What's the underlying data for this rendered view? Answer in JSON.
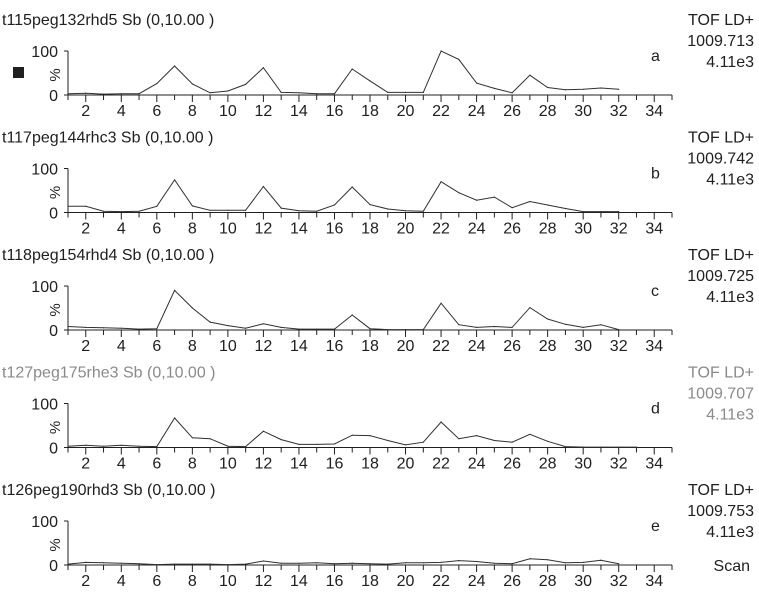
{
  "x_label": "Scan",
  "chart_data": [
    {
      "type": "line",
      "title": "t115peg132rhd5 Sb (0,10.00 )",
      "title_color": "#202020",
      "mode": "TOF LD+",
      "mass": "1009.713",
      "intensity": "4.11e3",
      "panel_letter": "a",
      "marker": true,
      "y_ticks": [
        "100",
        "0"
      ],
      "ylabel": "%",
      "xlim": [
        1,
        35
      ],
      "x_ticks": [
        2,
        4,
        6,
        8,
        10,
        12,
        14,
        16,
        18,
        20,
        22,
        24,
        26,
        28,
        30,
        32,
        34
      ],
      "x": [
        1,
        2,
        3,
        4,
        5,
        6,
        7,
        8,
        9,
        10,
        11,
        12,
        13,
        14,
        15,
        16,
        17,
        18,
        19,
        20,
        21,
        22,
        23,
        24,
        25,
        26,
        27,
        28,
        29,
        30,
        31,
        32
      ],
      "y": [
        3,
        4,
        2,
        3,
        3,
        26,
        66,
        25,
        5,
        9,
        24,
        62,
        6,
        5,
        3,
        3,
        59,
        32,
        6,
        6,
        6,
        100,
        81,
        27,
        15,
        5,
        45,
        17,
        12,
        13,
        16,
        13
      ]
    },
    {
      "type": "line",
      "title": "t117peg144rhc3 Sb (0,10.00 )",
      "title_color": "#202020",
      "mode": "TOF LD+",
      "mass": "1009.742",
      "intensity": "4.11e3",
      "panel_letter": "b",
      "marker": false,
      "y_ticks": [
        "100",
        "0"
      ],
      "ylabel": "%",
      "xlim": [
        1,
        35
      ],
      "x_ticks": [
        2,
        4,
        6,
        8,
        10,
        12,
        14,
        16,
        18,
        20,
        22,
        24,
        26,
        28,
        30,
        32,
        34
      ],
      "x": [
        1,
        2,
        3,
        4,
        5,
        6,
        7,
        8,
        9,
        10,
        11,
        12,
        13,
        14,
        15,
        16,
        17,
        18,
        19,
        20,
        21,
        22,
        23,
        24,
        25,
        26,
        27,
        28,
        29,
        30,
        31,
        32
      ],
      "y": [
        14,
        14,
        3,
        2,
        3,
        14,
        74,
        15,
        5,
        5,
        5,
        59,
        10,
        4,
        3,
        17,
        58,
        18,
        8,
        4,
        3,
        70,
        45,
        28,
        35,
        11,
        25,
        17,
        9,
        2,
        2,
        2
      ]
    },
    {
      "type": "line",
      "title": "t118peg154rhd4 Sb (0,10.00 )",
      "title_color": "#202020",
      "mode": "TOF LD+",
      "mass": "1009.725",
      "intensity": "4.11e3",
      "panel_letter": "c",
      "marker": false,
      "y_ticks": [
        "100",
        "0"
      ],
      "ylabel": "%",
      "xlim": [
        1,
        35
      ],
      "x_ticks": [
        2,
        4,
        6,
        8,
        10,
        12,
        14,
        16,
        18,
        20,
        22,
        24,
        26,
        28,
        30,
        32,
        34
      ],
      "x": [
        1,
        2,
        3,
        4,
        5,
        6,
        7,
        8,
        9,
        10,
        11,
        12,
        13,
        14,
        15,
        16,
        17,
        18,
        19,
        20,
        21,
        22,
        23,
        24,
        25,
        26,
        27,
        28,
        29,
        30,
        31,
        32
      ],
      "y": [
        8,
        6,
        5,
        4,
        2,
        3,
        90,
        50,
        18,
        10,
        4,
        14,
        6,
        2,
        2,
        2,
        34,
        3,
        1,
        1,
        1,
        61,
        12,
        6,
        8,
        6,
        51,
        25,
        13,
        6,
        12,
        1
      ]
    },
    {
      "type": "line",
      "title": "t127peg175rhe3 Sb (0,10.00 )",
      "title_color": "#8a8a8a",
      "mode": "TOF LD+",
      "mass": "1009.707",
      "intensity": "4.11e3",
      "panel_letter": "d",
      "marker": false,
      "y_ticks": [
        "100",
        "0"
      ],
      "ylabel": "%",
      "xlim": [
        1,
        35
      ],
      "x_ticks": [
        2,
        4,
        6,
        8,
        10,
        12,
        14,
        16,
        18,
        20,
        22,
        24,
        26,
        28,
        30,
        32,
        34
      ],
      "x": [
        1,
        2,
        3,
        4,
        5,
        6,
        7,
        8,
        9,
        10,
        11,
        12,
        13,
        14,
        15,
        16,
        17,
        18,
        19,
        20,
        21,
        22,
        23,
        24,
        25,
        26,
        27,
        28,
        29,
        30,
        31,
        32,
        33
      ],
      "y": [
        3,
        5,
        3,
        5,
        3,
        2,
        67,
        22,
        20,
        3,
        2,
        37,
        18,
        7,
        7,
        8,
        28,
        27,
        16,
        6,
        12,
        58,
        20,
        27,
        16,
        12,
        30,
        14,
        2,
        1,
        1,
        1,
        1
      ]
    },
    {
      "type": "line",
      "title": "t126peg190rhd3 Sb (0,10.00 )",
      "title_color": "#202020",
      "mode": "TOF LD+",
      "mass": "1009.753",
      "intensity": "4.11e3",
      "panel_letter": "e",
      "marker": false,
      "y_ticks": [
        "100",
        "0"
      ],
      "ylabel": "%",
      "xlim": [
        1,
        35
      ],
      "x_ticks": [
        2,
        4,
        6,
        8,
        10,
        12,
        14,
        16,
        18,
        20,
        22,
        24,
        26,
        28,
        30,
        32,
        34
      ],
      "x": [
        1,
        2,
        3,
        4,
        5,
        6,
        7,
        8,
        9,
        10,
        11,
        12,
        13,
        14,
        15,
        16,
        17,
        18,
        19,
        20,
        21,
        22,
        23,
        24,
        25,
        26,
        27,
        28,
        29,
        30,
        31,
        32
      ],
      "y": [
        2,
        6,
        5,
        4,
        3,
        1,
        2,
        2,
        2,
        1,
        2,
        9,
        4,
        4,
        5,
        3,
        4,
        3,
        2,
        5,
        5,
        6,
        10,
        8,
        4,
        3,
        14,
        12,
        5,
        6,
        11,
        3
      ]
    }
  ]
}
